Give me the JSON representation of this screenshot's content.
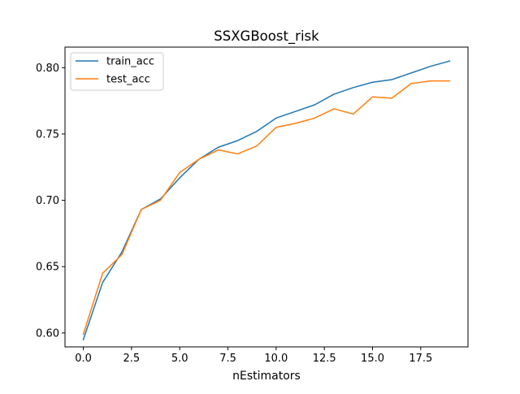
{
  "chart_data": {
    "type": "line",
    "title": "SSXGBoost_risk",
    "xlabel": "nEstimators",
    "ylabel": "",
    "x": [
      0,
      1,
      2,
      3,
      4,
      5,
      6,
      7,
      8,
      9,
      10,
      11,
      12,
      13,
      14,
      15,
      16,
      17,
      18,
      19
    ],
    "series": [
      {
        "name": "train_acc",
        "color": "#1f77b4",
        "values": [
          0.595,
          0.638,
          0.661,
          0.693,
          0.701,
          0.717,
          0.731,
          0.74,
          0.745,
          0.752,
          0.762,
          0.767,
          0.772,
          0.78,
          0.785,
          0.789,
          0.791,
          0.796,
          0.801,
          0.805
        ]
      },
      {
        "name": "test_acc",
        "color": "#ff7f0e",
        "values": [
          0.599,
          0.645,
          0.659,
          0.693,
          0.7,
          0.721,
          0.731,
          0.738,
          0.735,
          0.741,
          0.755,
          0.758,
          0.762,
          0.769,
          0.765,
          0.778,
          0.777,
          0.788,
          0.79,
          0.79
        ]
      }
    ],
    "xlim": [
      -0.95,
      19.95
    ],
    "ylim": [
      0.5895,
      0.8155
    ],
    "xticks": [
      0.0,
      2.5,
      5.0,
      7.5,
      10.0,
      12.5,
      15.0,
      17.5
    ],
    "xtick_labels": [
      "0.0",
      "2.5",
      "5.0",
      "7.5",
      "10.0",
      "12.5",
      "15.0",
      "17.5"
    ],
    "yticks": [
      0.6,
      0.65,
      0.7,
      0.75,
      0.8
    ],
    "ytick_labels": [
      "0.60",
      "0.65",
      "0.70",
      "0.75",
      "0.80"
    ],
    "grid": false,
    "legend_position": "top-left"
  }
}
